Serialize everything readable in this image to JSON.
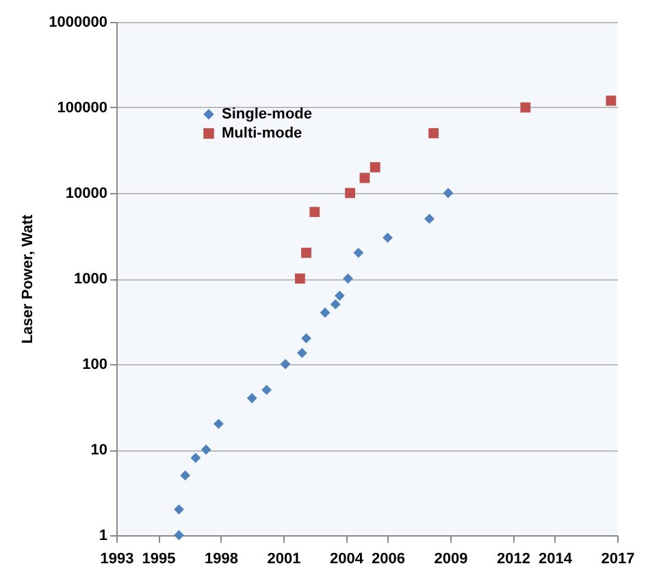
{
  "chart_data": {
    "type": "scatter",
    "ylabel": "Laser Power, Watt",
    "log": "y",
    "grid": "y",
    "legend": "top left",
    "xlim": [
      1993,
      2017
    ],
    "xticks": [
      1993,
      1995,
      1998,
      2001,
      2004,
      2006,
      2009,
      2012,
      2014,
      2017
    ],
    "ylim": [
      1,
      1000000
    ],
    "yticks": [
      1,
      10,
      100,
      1000,
      10000,
      100000,
      1000000
    ],
    "series": [
      {
        "name": "Single-mode",
        "color": "#4f81bd",
        "marker": "diamond",
        "x": [
          1996.0,
          1996.0,
          1996.3,
          1996.8,
          1997.3,
          1997.9,
          1999.5,
          2000.2,
          2001.1,
          2001.9,
          2002.1,
          2003.0,
          2003.5,
          2003.7,
          2004.1,
          2004.6,
          2006.0,
          2008.0,
          2008.9
        ],
        "values": [
          1,
          2,
          5,
          8,
          10,
          20,
          40,
          50,
          100,
          135,
          200,
          400,
          500,
          630,
          1000,
          2000,
          3000,
          5000,
          10000
        ]
      },
      {
        "name": "Multi-mode",
        "color": "#c0504d",
        "marker": "square",
        "x": [
          2001.8,
          2002.1,
          2002.5,
          2004.2,
          2004.9,
          2005.4,
          2008.2,
          2012.6,
          2016.7
        ],
        "values": [
          1000,
          2000,
          6000,
          10000,
          15000,
          20000,
          50000,
          100000,
          120000
        ]
      }
    ]
  }
}
